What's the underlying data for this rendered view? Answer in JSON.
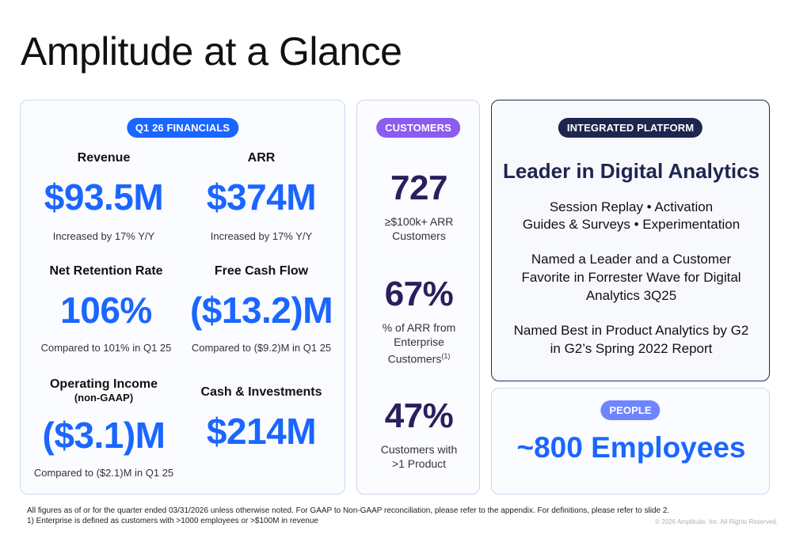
{
  "title": "Amplitude at a Glance",
  "financials": {
    "pill": "Q1 26 FINANCIALS",
    "revenue": {
      "label": "Revenue",
      "value": "$93.5M",
      "note": "Increased by 17% Y/Y"
    },
    "arr": {
      "label": "ARR",
      "value": "$374M",
      "note": "Increased by 17% Y/Y"
    },
    "nrr": {
      "label": "Net Retention Rate",
      "value": "106%",
      "note": "Compared to 101% in Q1 25"
    },
    "fcf": {
      "label": "Free Cash Flow",
      "value": "($13.2)M",
      "note": "Compared to ($9.2)M in Q1 25"
    },
    "operating_income": {
      "label": "Operating Income",
      "sublabel": "(non-GAAP)",
      "value": "($3.1)M",
      "note": "Compared to ($2.1)M in Q1 25"
    },
    "cash": {
      "label": "Cash & Investments",
      "value": "$214M"
    }
  },
  "customers": {
    "pill": "CUSTOMERS",
    "items": [
      {
        "value": "727",
        "desc": "≥$100k+ ARR Customers"
      },
      {
        "value": "67%",
        "desc": "% of ARR from Enterprise Customers",
        "footnote_ref": "(1)"
      },
      {
        "value": "47%",
        "desc": "Customers with >1 Product"
      }
    ]
  },
  "platform": {
    "pill": "INTEGRATED PLATFORM",
    "heading": "Leader in Digital Analytics",
    "lines": [
      "Session Replay • Activation",
      "Guides & Surveys • Experimentation",
      "Named a Leader and a Customer",
      "Favorite in Forrester Wave for Digital",
      "Analytics 3Q25",
      "Named Best in Product Analytics by G2",
      "in G2’s Spring 2022 Report"
    ]
  },
  "people": {
    "pill": "PEOPLE",
    "value": "~800 Employees"
  },
  "footnotes": [
    "All figures as of or for the quarter ended 03/31/2026 unless otherwise noted. For GAAP to Non-GAAP reconciliation, please refer to the appendix. For definitions, please refer to slide 2.",
    "1)  Enterprise is defined as customers with >1000 employees or >$100M in revenue"
  ],
  "copyright": "© 2026 Amplitude, Inc.  All Rights Reserved."
}
